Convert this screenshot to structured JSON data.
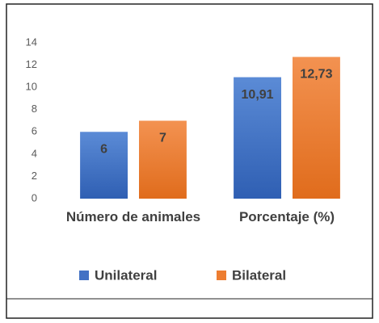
{
  "chart_data": {
    "type": "bar",
    "categories": [
      "Número de animales",
      "Porcentaje (%)"
    ],
    "series": [
      {
        "name": "Unilateral",
        "color": "#4472c4",
        "values": [
          6,
          10.91
        ],
        "value_labels": [
          "6",
          "10,91"
        ]
      },
      {
        "name": "Bilateral",
        "color": "#ed7d31",
        "values": [
          7,
          12.73
        ],
        "value_labels": [
          "7",
          "12,73"
        ]
      }
    ],
    "ylim": [
      0,
      14
    ],
    "yticks": [
      0,
      2,
      4,
      6,
      8,
      10,
      12,
      14
    ],
    "grid": false,
    "legend": "bottom"
  }
}
